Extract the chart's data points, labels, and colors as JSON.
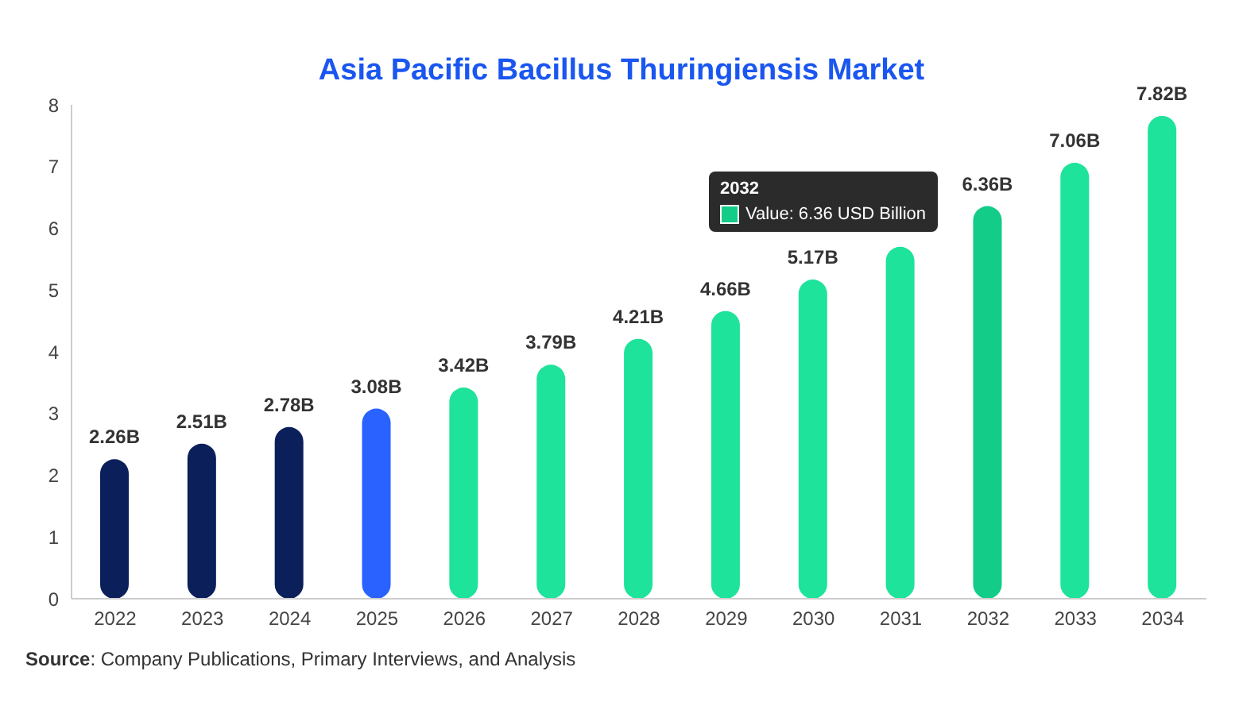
{
  "chart_data": {
    "type": "bar",
    "title": "Asia Pacific Bacillus Thuringiensis Market",
    "categories": [
      "2022",
      "2023",
      "2024",
      "2025",
      "2026",
      "2027",
      "2028",
      "2029",
      "2030",
      "2031",
      "2032",
      "2033",
      "2034"
    ],
    "values": [
      2.26,
      2.51,
      2.78,
      3.08,
      3.42,
      3.79,
      4.21,
      4.66,
      5.17,
      5.7,
      6.36,
      7.06,
      7.82
    ],
    "value_labels": [
      "2.26B",
      "2.51B",
      "2.78B",
      "3.08B",
      "3.42B",
      "3.79B",
      "4.21B",
      "4.66B",
      "5.17B",
      null,
      "6.36B",
      "7.06B",
      "7.82B"
    ],
    "colors": [
      "#0b1f5b",
      "#0b1f5b",
      "#0b1f5b",
      "#2962ff",
      "#1de39b",
      "#1de39b",
      "#1de39b",
      "#1de39b",
      "#1de39b",
      "#1de39b",
      "#12cc88",
      "#1de39b",
      "#1de39b"
    ],
    "ylim": [
      0,
      8
    ],
    "yticks": [
      0,
      1,
      2,
      3,
      4,
      5,
      6,
      7,
      8
    ],
    "grid": false,
    "legend": false,
    "annotations": [
      "2032",
      "Value: 6.36 USD Billion",
      "Source: Company Publications, Primary Interviews, and Analysis"
    ]
  }
}
